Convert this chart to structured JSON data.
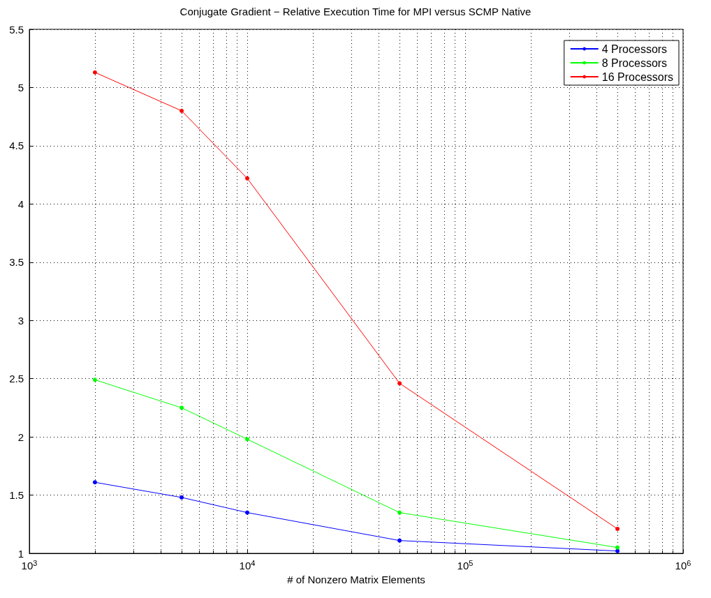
{
  "chart_data": {
    "type": "line",
    "title": "Conjugate Gradient − Relative Execution Time for MPI versus SCMP Native",
    "xlabel": "# of Nonzero Matrix Elements",
    "x": [
      2000,
      5000,
      10000,
      50000,
      500000
    ],
    "series": [
      {
        "name": "4 Processors",
        "color": "#0000ff",
        "values": [
          1.61,
          1.48,
          1.35,
          1.11,
          1.02
        ]
      },
      {
        "name": "8 Processors",
        "color": "#00ff00",
        "values": [
          2.49,
          2.25,
          1.98,
          1.35,
          1.05
        ]
      },
      {
        "name": "16 Processors",
        "color": "#ff0000",
        "values": [
          5.13,
          4.8,
          4.22,
          2.46,
          1.21
        ]
      }
    ],
    "log": "x",
    "xlim": [
      1000,
      1000000
    ],
    "xticks": [
      {
        "value": 1000,
        "label": "10$^{3}$"
      },
      {
        "value": 10000,
        "label": "10$^{4}$"
      },
      {
        "value": 100000,
        "label": "10$^{5}$"
      },
      {
        "value": 1000000,
        "label": "10$^{6}$"
      }
    ],
    "ylim": [
      1,
      5.5
    ],
    "yticks": [
      1,
      1.5,
      2,
      2.5,
      3,
      3.5,
      4,
      4.5,
      5,
      5.5
    ],
    "grid": true,
    "legend": "top right",
    "marker": "circle",
    "line_style": "solid"
  }
}
